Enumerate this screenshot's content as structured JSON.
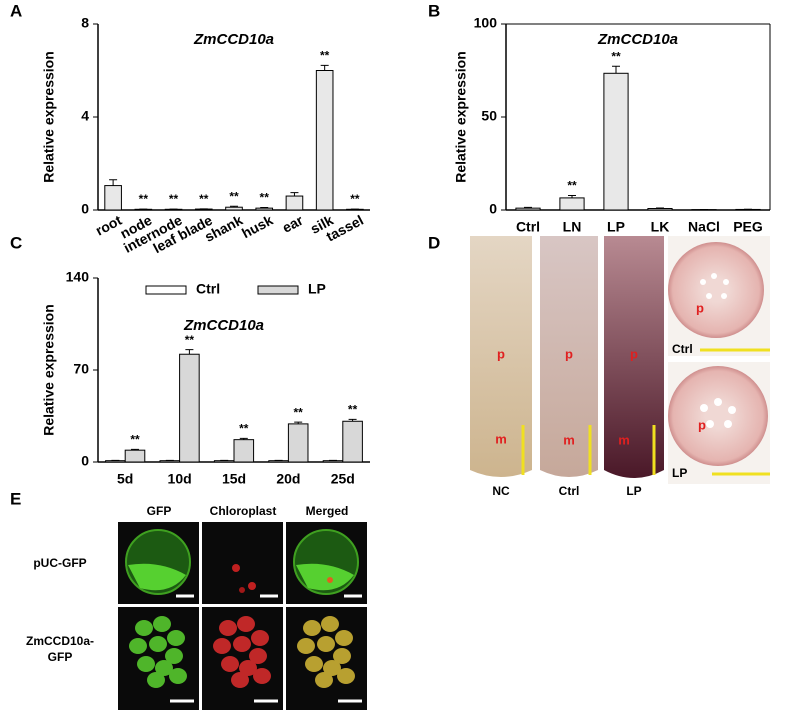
{
  "chart_data": [
    {
      "type": "bar",
      "panel": "A",
      "title": "ZmCCD10a",
      "y_label": "Relative expression",
      "categories": [
        "root",
        "node",
        "internode",
        "leaf blade",
        "shank",
        "husk",
        "ear",
        "silk",
        "tassel"
      ],
      "values": [
        1.05,
        0.03,
        0.03,
        0.04,
        0.12,
        0.08,
        0.6,
        6.0,
        0.03
      ],
      "errors": [
        0.25,
        0.01,
        0.01,
        0.01,
        0.04,
        0.03,
        0.15,
        0.22,
        0.01
      ],
      "color": "#e8e8e8",
      "ylim": [
        0,
        8
      ],
      "yticks": [
        0,
        4,
        8
      ],
      "annotations": [
        {
          "category": "node",
          "text": "**"
        },
        {
          "category": "internode",
          "text": "**"
        },
        {
          "category": "leaf blade",
          "text": "**"
        },
        {
          "category": "shank",
          "text": "**"
        },
        {
          "category": "husk",
          "text": "**"
        },
        {
          "category": "silk",
          "text": "**"
        },
        {
          "category": "tassel",
          "text": "**"
        }
      ]
    },
    {
      "type": "bar",
      "panel": "B",
      "title": "ZmCCD10a",
      "y_label": "Relative expression",
      "categories": [
        "Ctrl",
        "LN",
        "LP",
        "LK",
        "NaCl",
        "PEG"
      ],
      "values": [
        1.0,
        6.5,
        73.5,
        0.8,
        0.2,
        0.3
      ],
      "errors": [
        0.4,
        1.3,
        3.8,
        0.3,
        0.1,
        0.1
      ],
      "color": "#e8e8e8",
      "ylim": [
        0,
        100
      ],
      "yticks": [
        0,
        50,
        100
      ],
      "annotations": [
        {
          "category": "LN",
          "text": "**"
        },
        {
          "category": "LP",
          "text": "**"
        }
      ]
    },
    {
      "type": "grouped_bar",
      "panel": "C",
      "title": "ZmCCD10a",
      "y_label": "Relative expression",
      "categories": [
        "5d",
        "10d",
        "15d",
        "20d",
        "25d"
      ],
      "series": [
        {
          "name": "Ctrl",
          "color": "#ffffff",
          "values": [
            1,
            1,
            1,
            1,
            1
          ],
          "errors": [
            0.2,
            0.2,
            0.2,
            0.2,
            0.2
          ]
        },
        {
          "name": "LP",
          "color": "#d8d8d8",
          "values": [
            9,
            82,
            17,
            29,
            31
          ],
          "errors": [
            0.6,
            3.5,
            1.0,
            1.3,
            1.4
          ]
        }
      ],
      "ylim": [
        0,
        140
      ],
      "yticks": [
        0,
        70,
        140
      ],
      "annotations": [
        {
          "category": "5d",
          "series": "LP",
          "text": "**"
        },
        {
          "category": "10d",
          "series": "LP",
          "text": "**"
        },
        {
          "category": "15d",
          "series": "LP",
          "text": "**"
        },
        {
          "category": "20d",
          "series": "LP",
          "text": "**"
        },
        {
          "category": "25d",
          "series": "LP",
          "text": "**"
        }
      ]
    }
  ],
  "panel_d": {
    "label": "D",
    "root_labels": [
      "NC",
      "Ctrl",
      "LP"
    ],
    "section_labels": [
      "Ctrl",
      "LP"
    ],
    "p": "p",
    "m": "m"
  },
  "panel_e": {
    "label": "E",
    "columns": [
      "GFP",
      "Chloroplast",
      "Merged"
    ],
    "rows": [
      [
        "pUC-GFP"
      ],
      [
        "ZmCCD10a-",
        "GFP"
      ]
    ]
  }
}
